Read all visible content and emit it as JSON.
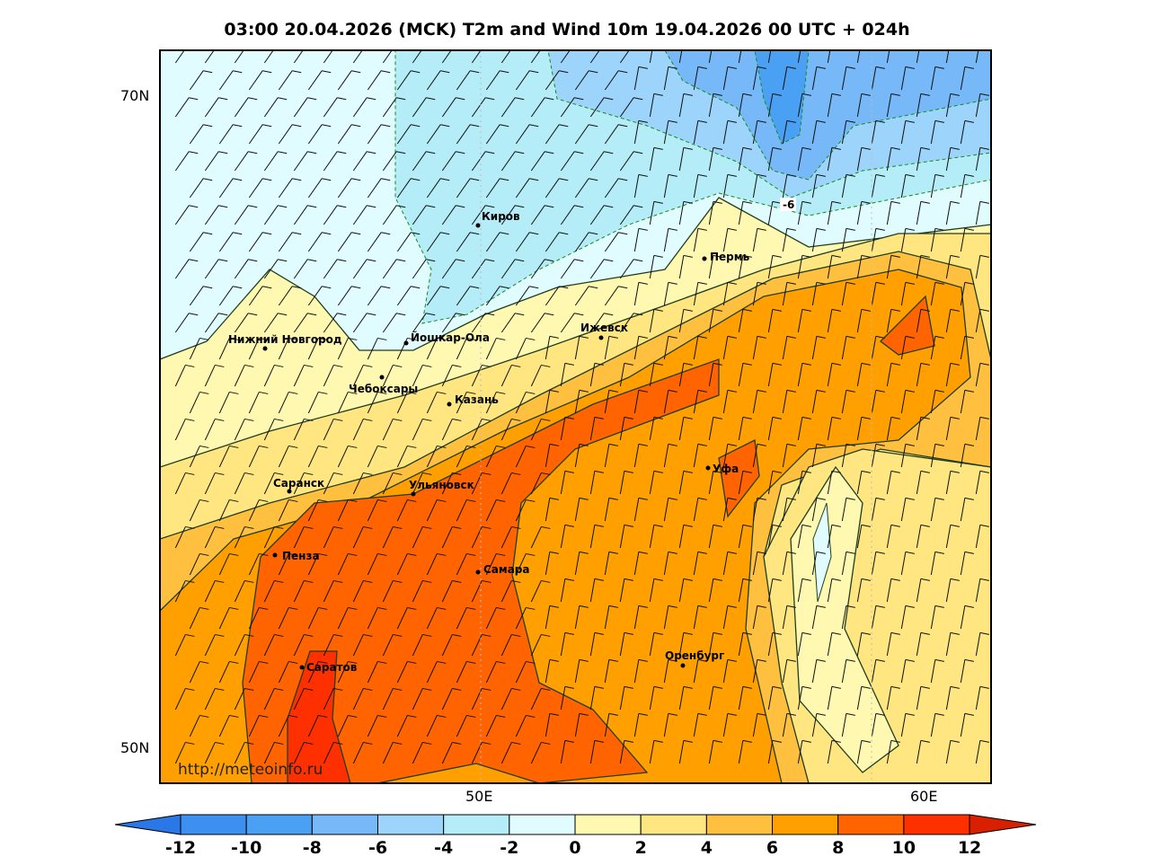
{
  "title": "03:00 20.04.2026 (MCK) T2m and Wind 10m 19.04.2026 00 UTC + 024h",
  "map": {
    "lat_labels": [
      "70N",
      "50N"
    ],
    "lon_labels": [
      "50E",
      "60E"
    ],
    "watermark": "http://meteoinfo.ru",
    "contour_label": "-6",
    "cities": [
      "Киров",
      "Пермь",
      "Нижний Новгород",
      "Йошкар-Ола",
      "Ижевск",
      "Чебоксары",
      "Казань",
      "Уфа",
      "Саранск",
      "Ульяновск",
      "Пенза",
      "Самара",
      "Саратов",
      "Оренбург"
    ]
  },
  "colorbar": {
    "labels": [
      "-12",
      "-10",
      "-8",
      "-6",
      "-4",
      "-2",
      "0",
      "2",
      "4",
      "6",
      "8",
      "10",
      "12"
    ],
    "colors": [
      "#3d8ff0",
      "#4aa0f2",
      "#76b8f8",
      "#9cd4fb",
      "#b4ecf8",
      "#e0fcfe",
      "#fff8b0",
      "#ffe680",
      "#ffc040",
      "#ffa000",
      "#ff6400",
      "#ff3000"
    ],
    "under_color": "#2a78e8",
    "over_color": "#d82000"
  }
}
